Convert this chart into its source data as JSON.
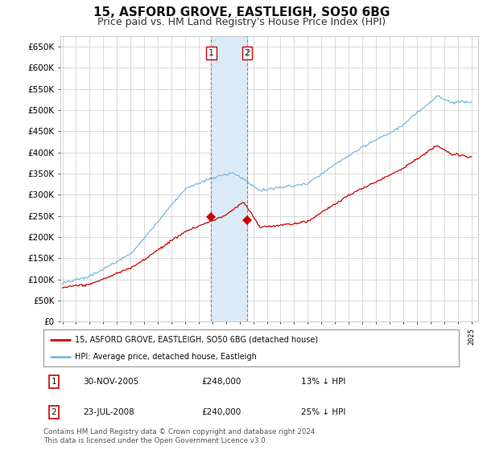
{
  "title": "15, ASFORD GROVE, EASTLEIGH, SO50 6BG",
  "subtitle": "Price paid vs. HM Land Registry's House Price Index (HPI)",
  "ylim": [
    0,
    675000
  ],
  "yticks": [
    0,
    50000,
    100000,
    150000,
    200000,
    250000,
    300000,
    350000,
    400000,
    450000,
    500000,
    550000,
    600000,
    650000
  ],
  "ytick_labels": [
    "£0",
    "£50K",
    "£100K",
    "£150K",
    "£200K",
    "£250K",
    "£300K",
    "£350K",
    "£400K",
    "£450K",
    "£500K",
    "£550K",
    "£600K",
    "£650K"
  ],
  "hpi_color": "#7ab8d9",
  "price_color": "#cc0000",
  "shade_color": "#daeaf6",
  "transaction_1_date": 2005.92,
  "transaction_1_price": 248000,
  "transaction_2_date": 2008.56,
  "transaction_2_price": 240000,
  "vline_color": "#dd4444",
  "legend_label_price": "15, ASFORD GROVE, EASTLEIGH, SO50 6BG (detached house)",
  "legend_label_hpi": "HPI: Average price, detached house, Eastleigh",
  "note1_num": "1",
  "note1_date": "30-NOV-2005",
  "note1_price": "£248,000",
  "note1_pct": "13% ↓ HPI",
  "note2_num": "2",
  "note2_date": "23-JUL-2008",
  "note2_price": "£240,000",
  "note2_pct": "25% ↓ HPI",
  "footer": "Contains HM Land Registry data © Crown copyright and database right 2024.\nThis data is licensed under the Open Government Licence v3.0.",
  "bg_color": "#ffffff",
  "grid_color": "#cccccc",
  "title_fontsize": 11,
  "subtitle_fontsize": 9,
  "axis_fontsize": 7.5
}
